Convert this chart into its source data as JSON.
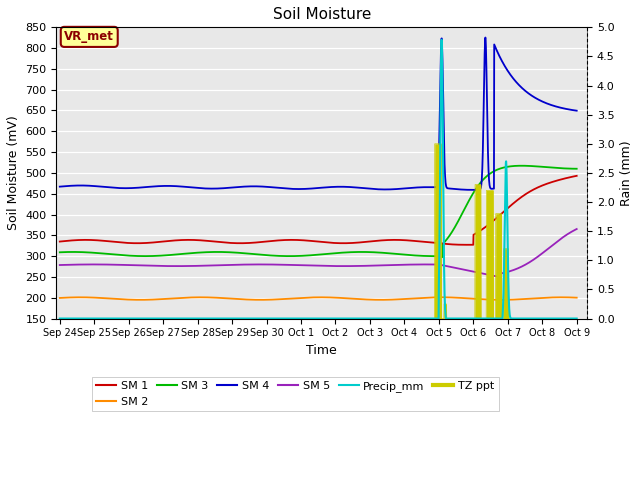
{
  "title": "Soil Moisture",
  "xlabel": "Time",
  "ylabel_left": "Soil Moisture (mV)",
  "ylabel_right": "Rain (mm)",
  "ylim_left": [
    150,
    850
  ],
  "ylim_right": [
    0.0,
    5.0
  ],
  "yticks_left": [
    150,
    200,
    250,
    300,
    350,
    400,
    450,
    500,
    550,
    600,
    650,
    700,
    750,
    800,
    850
  ],
  "yticks_right": [
    0.0,
    0.5,
    1.0,
    1.5,
    2.0,
    2.5,
    3.0,
    3.5,
    4.0,
    4.5,
    5.0
  ],
  "fig_bg_color": "#ffffff",
  "plot_bg_color": "#e8e8e8",
  "annotation_text": "VR_met",
  "annotation_color": "#8b0000",
  "annotation_bg": "#ffff99",
  "colors": {
    "SM1": "#cc0000",
    "SM2": "#ff8c00",
    "SM3": "#00bb00",
    "SM4": "#0000cc",
    "SM5": "#9922bb",
    "Precip_mm": "#00cccc",
    "TZ_ppt": "#cccc00"
  },
  "x_tick_labels": [
    "Sep 24",
    "Sep 25",
    "Sep 26",
    "Sep 27",
    "Sep 28",
    "Sep 29",
    "Sep 30",
    "Oct 1",
    "Oct 2",
    "Oct 3",
    "Oct 4",
    "Oct 5",
    "Oct 6",
    "Oct 7",
    "Oct 8",
    "Oct 9"
  ]
}
